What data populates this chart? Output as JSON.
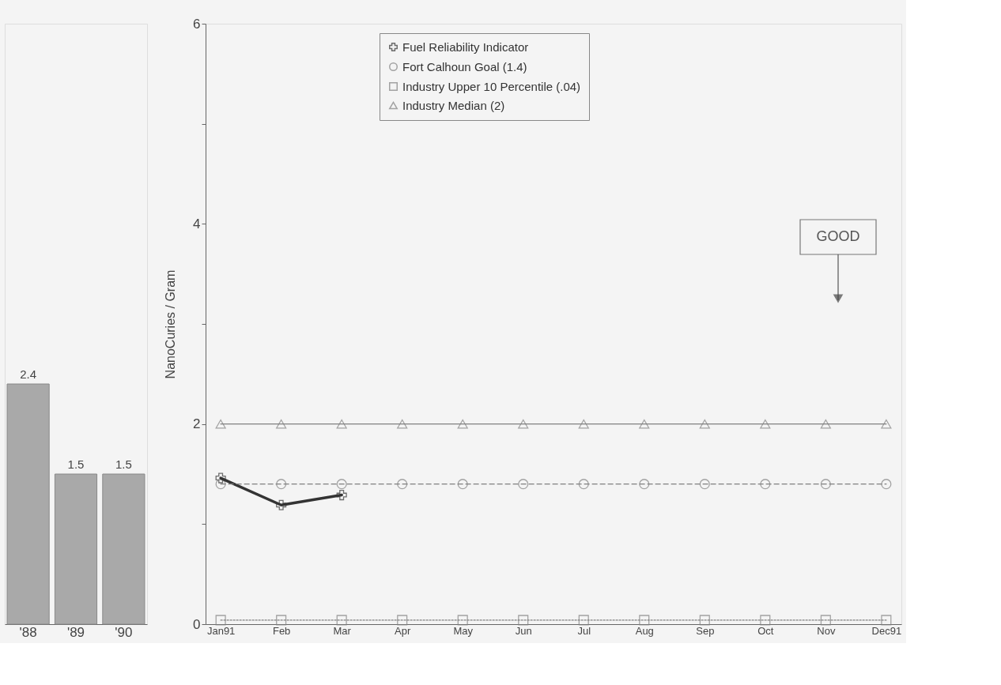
{
  "chart_data": [
    {
      "type": "bar",
      "categories": [
        "'88",
        "'89",
        "'90"
      ],
      "values": [
        2.4,
        1.5,
        1.5
      ],
      "color": "#a9a9a9",
      "data_labels": true,
      "ylim": [
        0,
        6
      ],
      "tick_labels": "x",
      "grid": false
    },
    {
      "type": "line",
      "categories": [
        "Jan91",
        "Feb",
        "Mar",
        "Apr",
        "May",
        "Jun",
        "Jul",
        "Aug",
        "Sep",
        "Oct",
        "Nov",
        "Dec91"
      ],
      "ylabel": "NanoCuries / Gram",
      "ylim": [
        0,
        6
      ],
      "yticks": [
        0,
        {
          "value": 1,
          "label": null
        },
        2,
        {
          "value": 3,
          "label": null
        },
        4,
        {
          "value": 5,
          "label": null
        },
        6
      ],
      "grid": false,
      "legend": "top",
      "series": [
        {
          "name": "Fuel Reliability Indicator",
          "color": "#333333",
          "marker": "cross",
          "line_style": "solid",
          "values": [
            1.46,
            1.19,
            1.29,
            null,
            null,
            null,
            null,
            null,
            null,
            null,
            null,
            null
          ]
        },
        {
          "name": "Fort Calhoun Goal (1.4)",
          "color": "#808080",
          "marker": "circle",
          "line_style": "dashed",
          "values": [
            1.4,
            1.4,
            1.4,
            1.4,
            1.4,
            1.4,
            1.4,
            1.4,
            1.4,
            1.4,
            1.4,
            1.4
          ]
        },
        {
          "name": "Industry Upper 10 Percentile (.04)",
          "color": "#808080",
          "marker": "square",
          "line_style": "dotted",
          "values": [
            0.04,
            0.04,
            0.04,
            0.04,
            0.04,
            0.04,
            0.04,
            0.04,
            0.04,
            0.04,
            0.04,
            0.04
          ]
        },
        {
          "name": "Industry Median (2)",
          "color": "#808080",
          "marker": "triangle",
          "line_style": "solid",
          "values": [
            2,
            2,
            2,
            2,
            2,
            2,
            2,
            2,
            2,
            2,
            2,
            2
          ]
        }
      ],
      "annotations": [
        "GOOD"
      ]
    }
  ]
}
